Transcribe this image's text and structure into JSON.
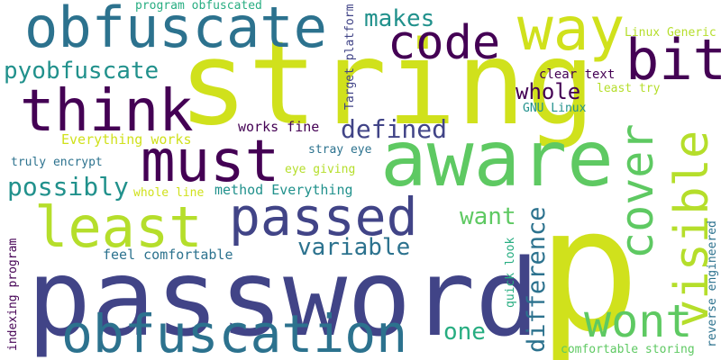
{
  "words": {
    "password": "password",
    "string": "string",
    "p": "p",
    "aware": "aware",
    "obfuscate": "obfuscate",
    "obfuscation": "obfuscation",
    "passed": "passed",
    "must": "must",
    "think": "think",
    "least": "least",
    "visible": "visible",
    "way": "way",
    "code": "code",
    "cover": "cover",
    "wont": "wont",
    "bit": "bit",
    "pyobfuscate": "pyobfuscate",
    "difference": "difference",
    "variable": "variable",
    "possibly": "possibly",
    "defined": "defined",
    "whole": "whole",
    "makes": "makes",
    "want": "want",
    "one": "one",
    "reverse_engineered": "reverse engineered",
    "indexing_program": "indexing program",
    "target_platform": "Target platform",
    "program_obfuscated": "program obfuscated",
    "linux_generic": "Linux Generic",
    "clear_text": "clear text",
    "least_try": "least try",
    "gnu_linux": "GNU Linux",
    "everything_works": "Everything works",
    "works_fine": "works fine",
    "stray_eye": "stray eye",
    "truly_encrypt": "truly encrypt",
    "eye_giving": "eye giving",
    "whole_line": "whole line",
    "method_everything": "method Everything",
    "feel_comfortable": "feel comfortable",
    "quick_look": "quick look",
    "comfortable_storing": "comfortable storing"
  },
  "colors": {
    "dark_purple": "#440154",
    "indigo": "#3b528b",
    "slate": "#414487",
    "blue": "#2c728e",
    "teal": "#21918c",
    "green": "#27ad81",
    "light_green": "#5ec962",
    "lime": "#b5de2b",
    "yellow": "#d0e11c"
  }
}
